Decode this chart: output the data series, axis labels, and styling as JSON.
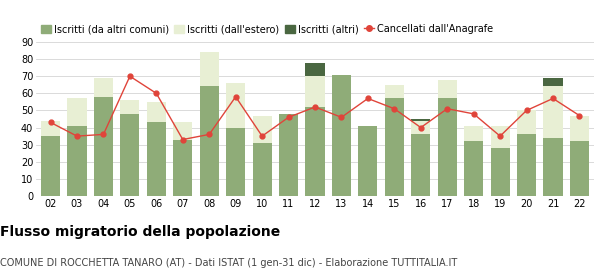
{
  "years": [
    "02",
    "03",
    "04",
    "05",
    "06",
    "07",
    "08",
    "09",
    "10",
    "11",
    "12",
    "13",
    "14",
    "15",
    "16",
    "17",
    "18",
    "19",
    "20",
    "21",
    "22"
  ],
  "iscritti_comuni": [
    35,
    41,
    58,
    48,
    43,
    33,
    64,
    40,
    31,
    48,
    52,
    71,
    41,
    57,
    36,
    57,
    32,
    28,
    36,
    34,
    32
  ],
  "iscritti_estero": [
    9,
    16,
    11,
    8,
    12,
    10,
    20,
    26,
    16,
    0,
    18,
    0,
    0,
    8,
    8,
    11,
    9,
    13,
    14,
    30,
    15
  ],
  "iscritti_altri": [
    0,
    0,
    0,
    0,
    0,
    0,
    0,
    0,
    0,
    0,
    8,
    0,
    0,
    0,
    1,
    0,
    0,
    0,
    0,
    5,
    0
  ],
  "cancellati": [
    43,
    35,
    36,
    70,
    60,
    33,
    36,
    58,
    35,
    46,
    52,
    46,
    57,
    51,
    40,
    51,
    48,
    35,
    50,
    57,
    47
  ],
  "color_comuni": "#8fac78",
  "color_estero": "#e8efd4",
  "color_altri": "#4a6741",
  "color_cancellati": "#e0443a",
  "color_grid": "#cccccc",
  "color_bg": "#ffffff",
  "ylabel_ticks": [
    0,
    10,
    20,
    30,
    40,
    50,
    60,
    70,
    80,
    90
  ],
  "ylim": [
    0,
    90
  ],
  "title": "Flusso migratorio della popolazione",
  "subtitle": "COMUNE DI ROCCHETTA TANARO (AT) - Dati ISTAT (1 gen-31 dic) - Elaborazione TUTTITALIA.IT",
  "legend_labels": [
    "Iscritti (da altri comuni)",
    "Iscritti (dall'estero)",
    "Iscritti (altri)",
    "Cancellati dall'Anagrafe"
  ],
  "title_fontsize": 10,
  "subtitle_fontsize": 7,
  "tick_fontsize": 7,
  "legend_fontsize": 7
}
